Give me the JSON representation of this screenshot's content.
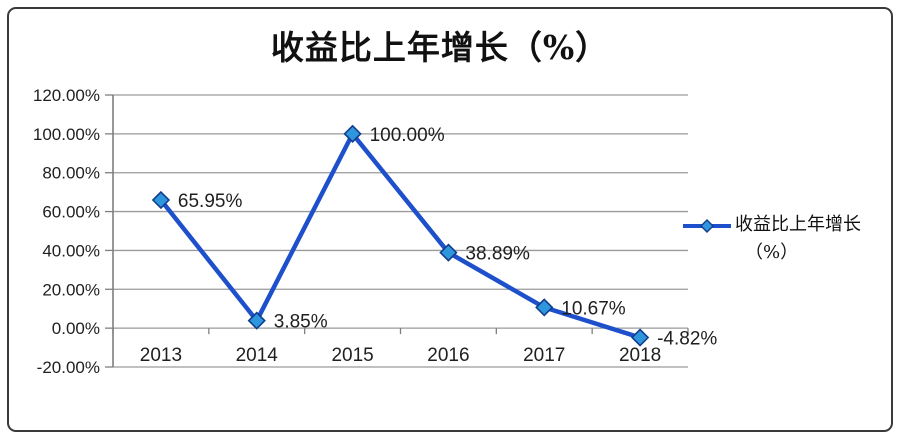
{
  "chart_data": {
    "type": "line",
    "title": "收益比上年增长（%）",
    "categories": [
      "2013",
      "2014",
      "2015",
      "2016",
      "2017",
      "2018"
    ],
    "series": [
      {
        "name": "收益比上年增长（%）",
        "values": [
          65.95,
          3.85,
          100.0,
          38.89,
          10.67,
          -4.82
        ],
        "point_labels": [
          "65.95%",
          "3.85%",
          "100.00%",
          "38.89%",
          "10.67%",
          "-4.82%"
        ]
      }
    ],
    "xlabel": "",
    "ylabel": "",
    "ylim": [
      -20,
      120
    ],
    "ytick_step": 20,
    "ytick_labels_top_to_bottom": [
      "120.00%",
      "100.00%",
      "80.00%",
      "60.00%",
      "40.00%",
      "20.00%",
      "0.00%",
      "-20.00%"
    ],
    "grid": true,
    "legend_position": "right",
    "legend_lines": [
      "收益比上年增长",
      "（%）"
    ],
    "colors": {
      "line": "#1e50cc",
      "marker_fill": "#2e96dd",
      "marker_stroke": "#123c8c",
      "gridline": "#9a9a9a",
      "axis": "#7f7f7f",
      "text": "#1f1f1f",
      "border": "#3a3a3a",
      "background": "#ffffff"
    }
  }
}
